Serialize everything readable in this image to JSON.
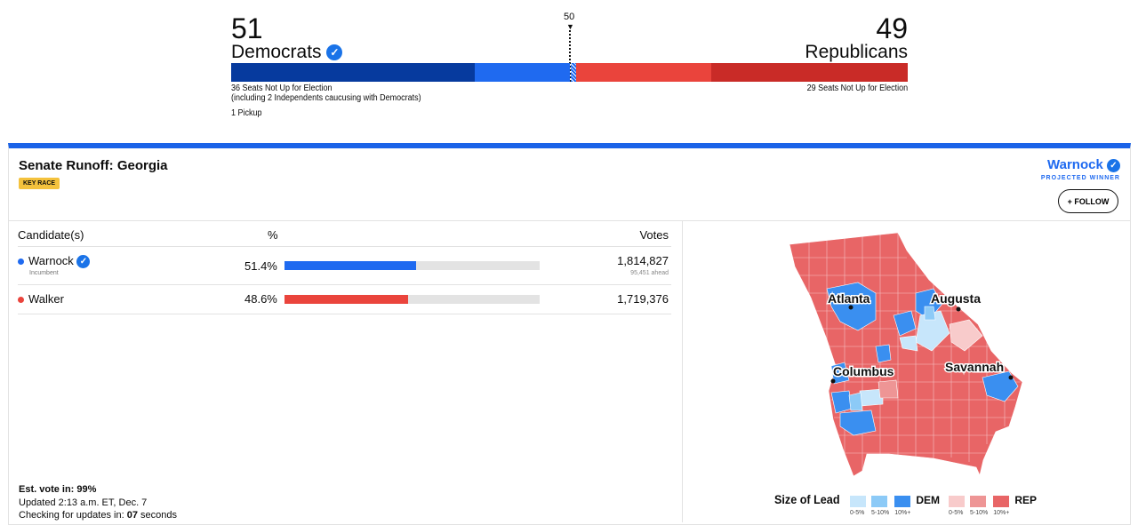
{
  "balance": {
    "dem": {
      "seats": "51",
      "label": "Democrats",
      "note1": "36 Seats Not Up for Election",
      "note2": "(including 2 Independents caucusing with Democrats)",
      "pickup": "1 Pickup"
    },
    "rep": {
      "seats": "49",
      "label": "Republicans",
      "note1": "29 Seats Not Up for Election"
    },
    "majority": "50",
    "colors": {
      "dem_dark": "#063a9e",
      "dem_light": "#1f6af0",
      "rep_light": "#ea443c",
      "rep_dark": "#c92b27"
    }
  },
  "race": {
    "title": "Senate Runoff: Georgia",
    "badge": "KEY RACE",
    "winner": "Warnock",
    "winner_label": "PROJECTED WINNER",
    "follow": "+ FOLLOW",
    "headers": {
      "candidate": "Candidate(s)",
      "pct": "%",
      "votes": "Votes"
    },
    "candidates": [
      {
        "name": "Warnock",
        "sub": "Incumbent",
        "pct": "51.4%",
        "pct_value": 51.4,
        "votes": "1,814,827",
        "ahead": "95,451 ahead",
        "color": "#1f6af0",
        "winner": true
      },
      {
        "name": "Walker",
        "sub": "",
        "pct": "48.6%",
        "pct_value": 48.6,
        "votes": "1,719,376",
        "ahead": "",
        "color": "#ea443c",
        "winner": false
      }
    ],
    "est_label": "Est. vote in:",
    "est_value": "99%",
    "updated": "Updated 2:13 a.m. ET, Dec. 7",
    "checking_prefix": "Checking for updates in:",
    "checking_value": "07",
    "checking_suffix": "seconds"
  },
  "map": {
    "cities": [
      "Atlanta",
      "Augusta",
      "Columbus",
      "Savannah"
    ],
    "legend": {
      "title": "Size of Lead",
      "dem": "DEM",
      "rep": "REP",
      "ranges": [
        "0-5%",
        "5-10%",
        "10%+"
      ],
      "dem_colors": [
        "#c7e6fb",
        "#8ccaf7",
        "#3a8ff0"
      ],
      "rep_colors": [
        "#f8cbcb",
        "#ee9595",
        "#e86566"
      ]
    }
  }
}
